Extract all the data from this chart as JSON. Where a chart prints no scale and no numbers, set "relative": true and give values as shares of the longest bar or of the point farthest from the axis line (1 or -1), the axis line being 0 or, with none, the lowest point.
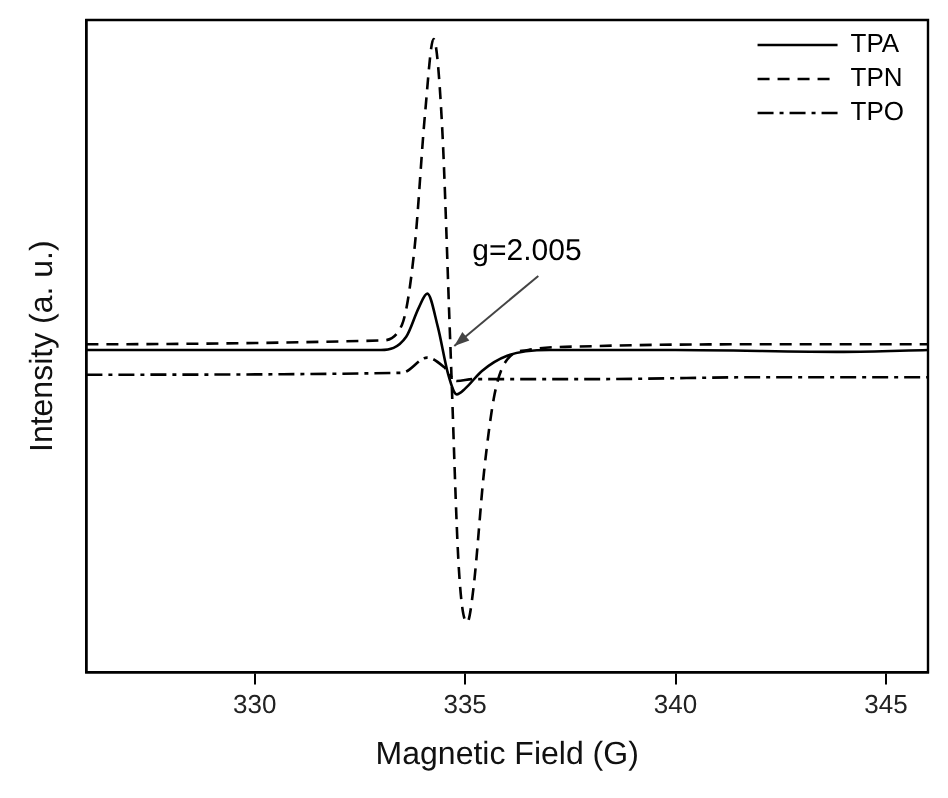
{
  "chart_data": {
    "type": "line",
    "relative": true,
    "xlabel": "Magnetic Field (G)",
    "ylabel": "Intensity (a. u.)",
    "xlim": [
      326,
      346
    ],
    "xticks": [
      330,
      335,
      340,
      345
    ],
    "grid": false,
    "legend": "top right",
    "marker": "none",
    "annotations": [
      {
        "text": "g=2.005",
        "x": 334.6,
        "y": 0.506
      }
    ],
    "series": [
      {
        "name": "TPA",
        "color": "#000000",
        "line_style": "solid",
        "x": [
          326,
          333,
          333.6,
          333.9,
          334.1,
          334.35,
          334.6,
          334.8,
          335.0,
          335.4,
          336.0,
          337,
          340,
          344,
          346
        ],
        "values": [
          0.509,
          0.509,
          0.53,
          0.576,
          0.598,
          0.546,
          0.47,
          0.439,
          0.448,
          0.476,
          0.5,
          0.509,
          0.509,
          0.506,
          0.509
        ]
      },
      {
        "name": "TPN",
        "color": "#000000",
        "line_style": "dashed",
        "x": [
          326,
          333.0,
          333.5,
          333.8,
          334.05,
          334.25,
          334.45,
          334.65,
          334.85,
          335.05,
          335.2,
          335.45,
          335.7,
          336.0,
          336.5,
          338,
          342,
          346
        ],
        "values": [
          0.518,
          0.524,
          0.549,
          0.671,
          0.884,
          1.0,
          0.866,
          0.515,
          0.165,
          0.079,
          0.134,
          0.317,
          0.439,
          0.494,
          0.509,
          0.515,
          0.518,
          0.518
        ]
      },
      {
        "name": "TPO",
        "color": "#000000",
        "line_style": "dashdot",
        "x": [
          326,
          333.5,
          334.1,
          334.5,
          334.8,
          335.2,
          338,
          342,
          346
        ],
        "values": [
          0.47,
          0.473,
          0.497,
          0.482,
          0.46,
          0.463,
          0.463,
          0.466,
          0.466
        ]
      }
    ]
  }
}
